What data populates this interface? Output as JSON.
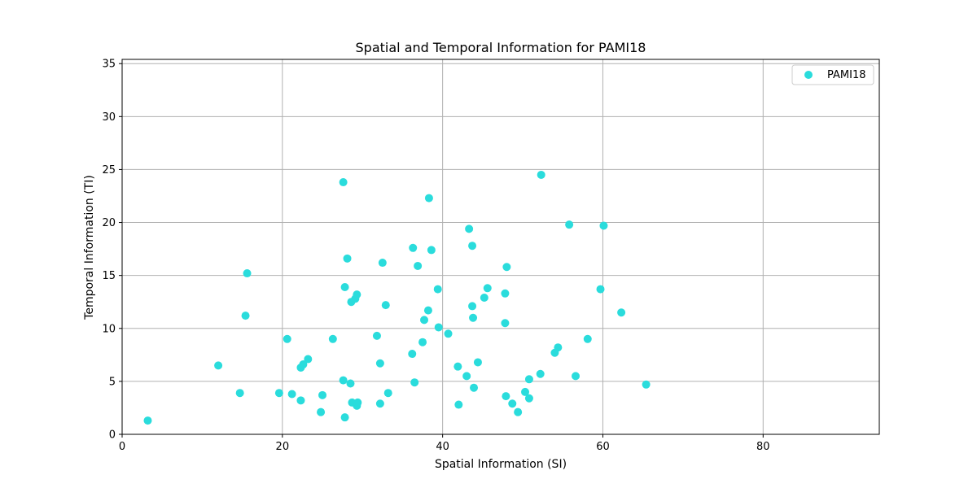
{
  "chart_data": {
    "type": "scatter",
    "title": "Spatial and Temporal Information for PAMI18",
    "xlabel": "Spatial Information (SI)",
    "ylabel": "Temporal Information (TI)",
    "xlim": [
      0,
      94.5
    ],
    "ylim": [
      0,
      35.4
    ],
    "xticks": [
      0,
      20,
      40,
      60,
      80
    ],
    "yticks": [
      0,
      5,
      10,
      15,
      20,
      25,
      30,
      35
    ],
    "grid": true,
    "legend_position": "top-right",
    "marker_color": "#2adcdc",
    "series": [
      {
        "name": "PAMI18",
        "points": [
          [
            3.2,
            1.3
          ],
          [
            12.0,
            6.5
          ],
          [
            14.7,
            3.9
          ],
          [
            15.4,
            11.2
          ],
          [
            15.6,
            15.2
          ],
          [
            19.6,
            3.9
          ],
          [
            20.6,
            9.0
          ],
          [
            21.2,
            3.8
          ],
          [
            22.3,
            6.3
          ],
          [
            22.3,
            3.2
          ],
          [
            22.6,
            6.6
          ],
          [
            23.2,
            7.1
          ],
          [
            24.8,
            2.1
          ],
          [
            25.0,
            3.7
          ],
          [
            26.3,
            9.0
          ],
          [
            27.6,
            23.8
          ],
          [
            27.6,
            5.1
          ],
          [
            27.8,
            13.9
          ],
          [
            27.8,
            1.6
          ],
          [
            28.1,
            16.6
          ],
          [
            28.5,
            4.8
          ],
          [
            28.6,
            12.5
          ],
          [
            28.7,
            3.0
          ],
          [
            29.1,
            12.8
          ],
          [
            29.3,
            13.2
          ],
          [
            29.3,
            2.7
          ],
          [
            29.4,
            3.0
          ],
          [
            31.8,
            9.3
          ],
          [
            32.2,
            6.7
          ],
          [
            32.2,
            2.9
          ],
          [
            32.5,
            16.2
          ],
          [
            32.9,
            12.2
          ],
          [
            33.2,
            3.9
          ],
          [
            36.2,
            7.6
          ],
          [
            36.3,
            17.6
          ],
          [
            36.5,
            4.9
          ],
          [
            36.9,
            15.9
          ],
          [
            37.5,
            8.7
          ],
          [
            37.7,
            10.8
          ],
          [
            38.2,
            11.7
          ],
          [
            38.3,
            22.3
          ],
          [
            38.6,
            17.4
          ],
          [
            39.4,
            13.7
          ],
          [
            39.5,
            10.1
          ],
          [
            40.7,
            9.5
          ],
          [
            41.9,
            6.4
          ],
          [
            42.0,
            2.8
          ],
          [
            43.0,
            5.5
          ],
          [
            43.3,
            19.4
          ],
          [
            43.7,
            12.1
          ],
          [
            43.7,
            17.8
          ],
          [
            43.8,
            11.0
          ],
          [
            43.9,
            4.4
          ],
          [
            44.4,
            6.8
          ],
          [
            45.2,
            12.9
          ],
          [
            45.6,
            13.8
          ],
          [
            47.8,
            13.3
          ],
          [
            47.8,
            10.5
          ],
          [
            47.9,
            3.6
          ],
          [
            48.0,
            15.8
          ],
          [
            48.7,
            2.9
          ],
          [
            49.4,
            2.1
          ],
          [
            50.3,
            4.0
          ],
          [
            50.8,
            5.2
          ],
          [
            50.8,
            3.4
          ],
          [
            52.2,
            5.7
          ],
          [
            52.3,
            24.5
          ],
          [
            54.0,
            7.7
          ],
          [
            54.4,
            8.2
          ],
          [
            55.8,
            19.8
          ],
          [
            56.6,
            5.5
          ],
          [
            58.1,
            9.0
          ],
          [
            59.7,
            13.7
          ],
          [
            60.1,
            19.7
          ],
          [
            62.3,
            11.5
          ],
          [
            65.4,
            4.7
          ]
        ]
      }
    ]
  }
}
